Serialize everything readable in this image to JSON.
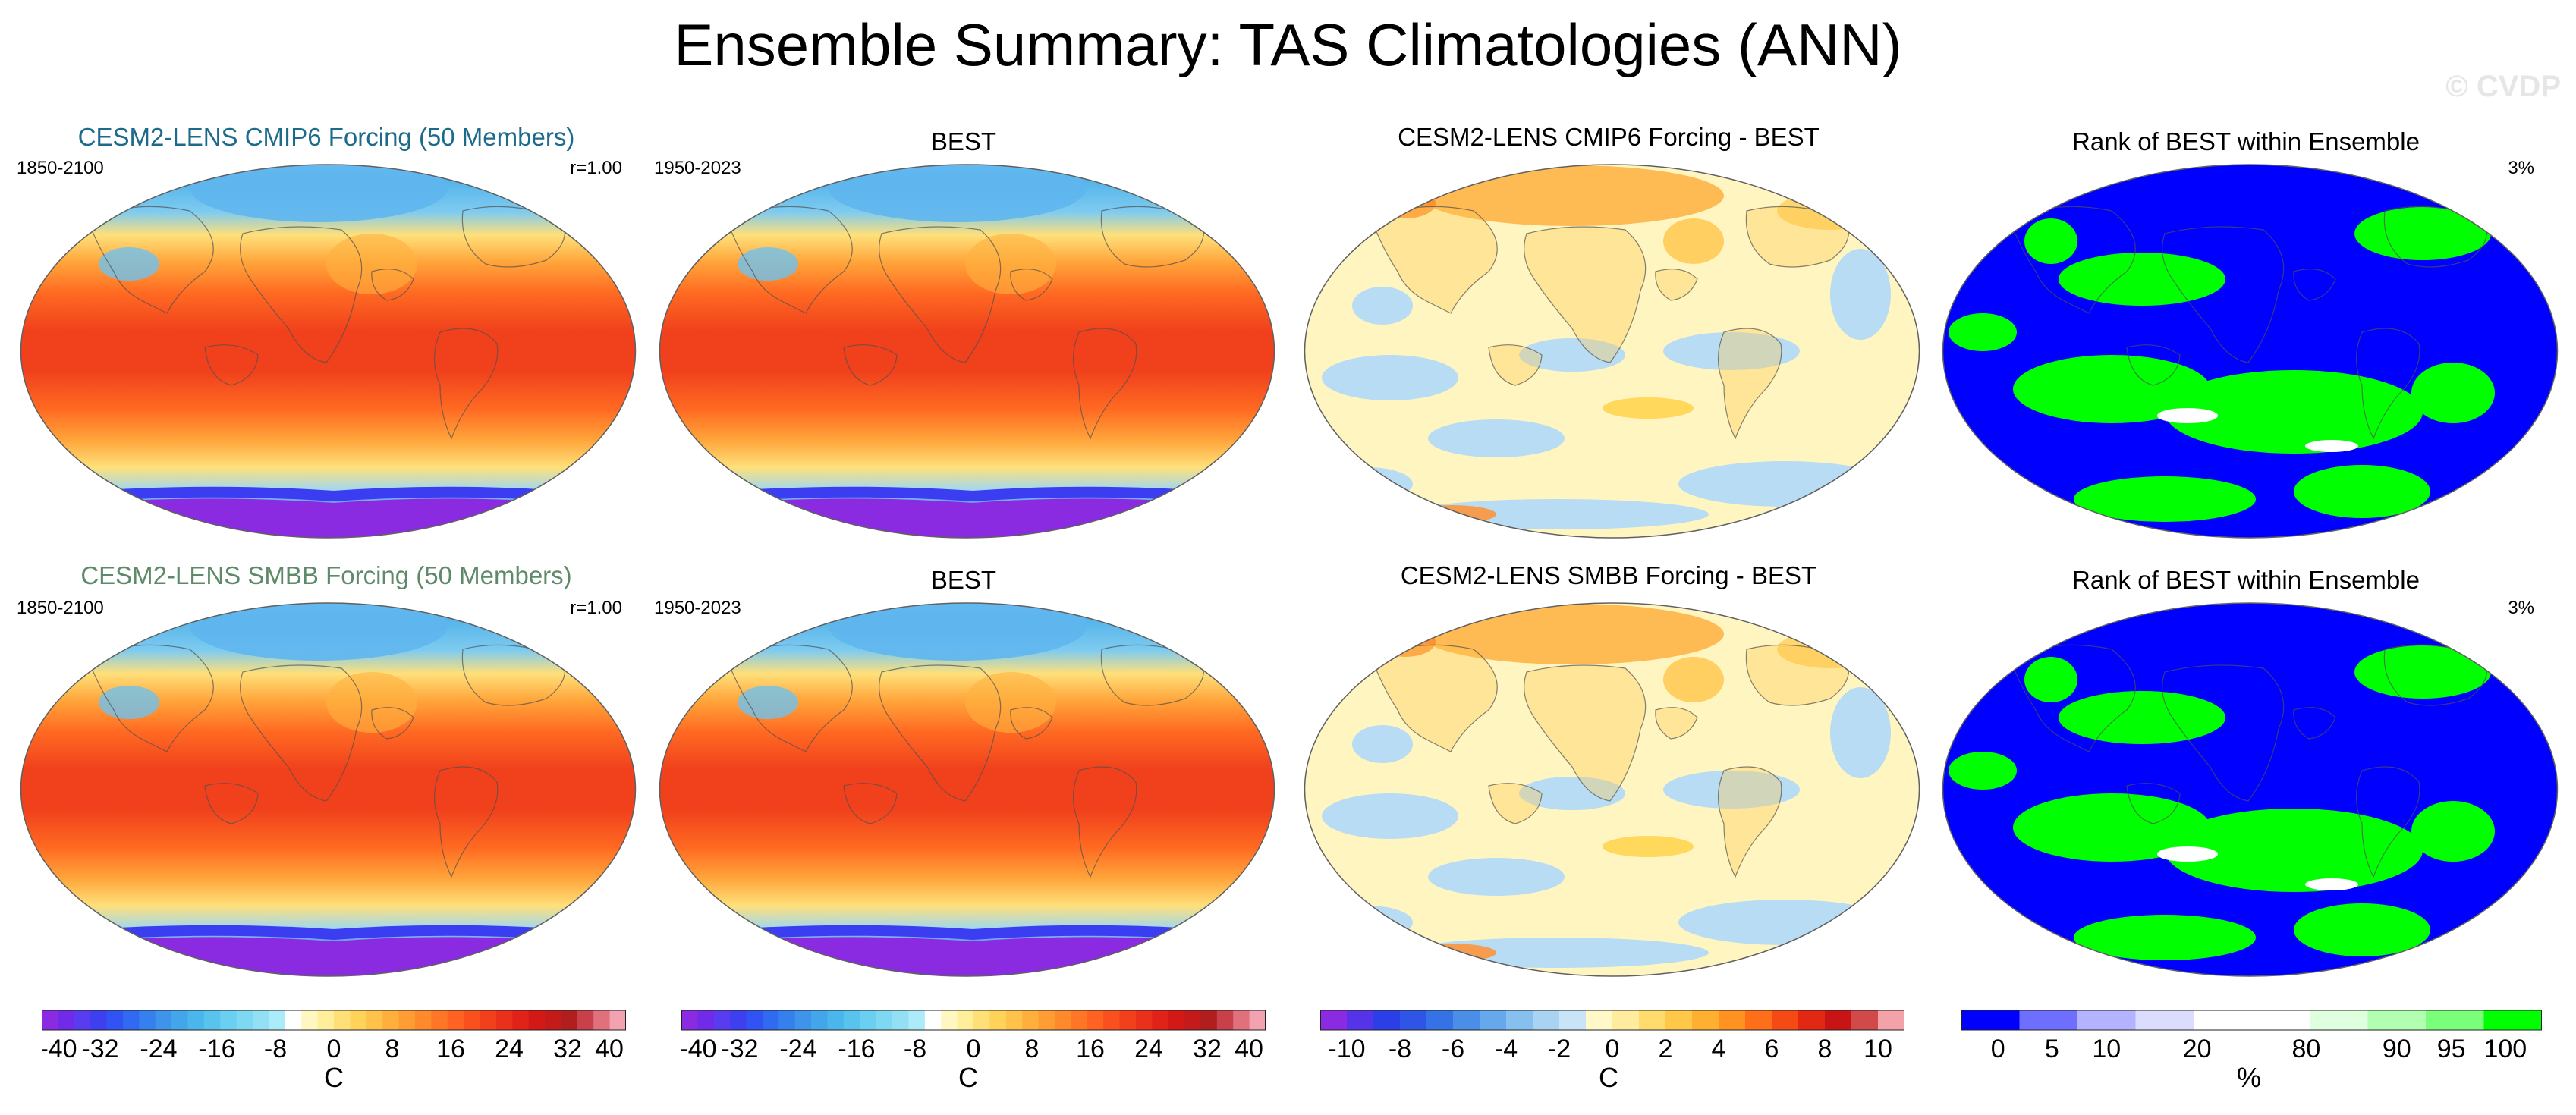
{
  "figure": {
    "title": "Ensemble Summary: TAS Climatologies (ANN)",
    "watermark": "© CVDP"
  },
  "colors": {
    "model_title_row1": "#1d6b8a",
    "model_title_row2": "#5e8a6a",
    "ocean_blue": "#0000ff",
    "rank_green": "#00ff00"
  },
  "panels": {
    "r1c1": {
      "title": "CESM2-LENS CMIP6 Forcing (50 Members)",
      "left": "1850-2100",
      "right": "r=1.00",
      "kind": "clim"
    },
    "r1c2": {
      "title": "BEST",
      "left": "1950-2023",
      "kind": "clim"
    },
    "r1c3": {
      "title": "CESM2-LENS CMIP6 Forcing - BEST",
      "kind": "diff"
    },
    "r1c4": {
      "title": "Rank of BEST within Ensemble",
      "right": "3%",
      "kind": "rank"
    },
    "r2c1": {
      "title": "CESM2-LENS SMBB Forcing (50 Members)",
      "left": "1850-2100",
      "right": "r=1.00",
      "kind": "clim"
    },
    "r2c2": {
      "title": "BEST",
      "left": "1950-2023",
      "kind": "clim"
    },
    "r2c3": {
      "title": "CESM2-LENS SMBB Forcing - BEST",
      "kind": "diff"
    },
    "r2c4": {
      "title": "Rank of BEST within Ensemble",
      "right": "3%",
      "kind": "rank"
    }
  },
  "chart_data": [
    {
      "type": "colorbar",
      "name": "climatology",
      "unit": "C",
      "tick_labels": [
        "-40",
        "-32",
        "-24",
        "-16",
        "-8",
        "0",
        "8",
        "16",
        "24",
        "32",
        "40"
      ],
      "range": [
        -40,
        40
      ],
      "colors": [
        "#8a2be2",
        "#6f2be8",
        "#5a3cf0",
        "#3f3ff2",
        "#3153f4",
        "#2f6af0",
        "#3580ec",
        "#3e94ea",
        "#44a6ea",
        "#4bb6ec",
        "#58c4ee",
        "#6acff0",
        "#7ed8f2",
        "#93e0f4",
        "#acebf8",
        "#ffffff",
        "#fff7c2",
        "#ffee9a",
        "#ffe078",
        "#ffd25a",
        "#ffc24a",
        "#ffb03c",
        "#ff9c34",
        "#ff8a2c",
        "#ff7626",
        "#ff6222",
        "#f9501e",
        "#f2401c",
        "#ea301a",
        "#e02218",
        "#d41816",
        "#c41a1a",
        "#b01e1e",
        "#c8404a",
        "#e0707c",
        "#f3a3b0"
      ]
    },
    {
      "type": "colorbar",
      "name": "climatology",
      "unit": "C",
      "tick_labels": [
        "-40",
        "-32",
        "-24",
        "-16",
        "-8",
        "0",
        "8",
        "16",
        "24",
        "32",
        "40"
      ],
      "range": [
        -40,
        40
      ],
      "colors": [
        "#8a2be2",
        "#6f2be8",
        "#5a3cf0",
        "#3f3ff2",
        "#3153f4",
        "#2f6af0",
        "#3580ec",
        "#3e94ea",
        "#44a6ea",
        "#4bb6ec",
        "#58c4ee",
        "#6acff0",
        "#7ed8f2",
        "#93e0f4",
        "#acebf8",
        "#ffffff",
        "#fff7c2",
        "#ffee9a",
        "#ffe078",
        "#ffd25a",
        "#ffc24a",
        "#ffb03c",
        "#ff9c34",
        "#ff8a2c",
        "#ff7626",
        "#ff6222",
        "#f9501e",
        "#f2401c",
        "#ea301a",
        "#e02218",
        "#d41816",
        "#c41a1a",
        "#b01e1e",
        "#c8404a",
        "#e0707c",
        "#f3a3b0"
      ]
    },
    {
      "type": "colorbar",
      "name": "difference",
      "unit": "C",
      "tick_labels": [
        "-10",
        "-8",
        "-6",
        "-4",
        "-2",
        "0",
        "2",
        "4",
        "6",
        "8",
        "10"
      ],
      "range": [
        -11,
        11
      ],
      "colors": [
        "#8a2be2",
        "#5533e8",
        "#2b3fe8",
        "#2f55e6",
        "#3572e6",
        "#4a8ee8",
        "#66a8ec",
        "#86c0ee",
        "#a8d4f2",
        "#c8e4f6",
        "#fff8c8",
        "#ffec9e",
        "#ffdc6c",
        "#ffc848",
        "#ffb030",
        "#ff9220",
        "#ff6e18",
        "#f54a14",
        "#e22812",
        "#c81414",
        "#d04a4a",
        "#f3a3a8"
      ]
    },
    {
      "type": "colorbar",
      "name": "rank",
      "unit": "%",
      "tick_labels": [
        "0",
        "5",
        "10",
        "20",
        "80",
        "90",
        "95",
        "100"
      ],
      "tick_positions": [
        0.063,
        0.156,
        0.25,
        0.406,
        0.594,
        0.75,
        0.844,
        0.937
      ],
      "colors": [
        "#0000ff",
        "#6f6fff",
        "#b3b3ff",
        "#dcdcff",
        "#ffffff",
        "#ffffff",
        "#dfffdf",
        "#b2ffb2",
        "#7aff7a",
        "#00ff00"
      ]
    }
  ]
}
